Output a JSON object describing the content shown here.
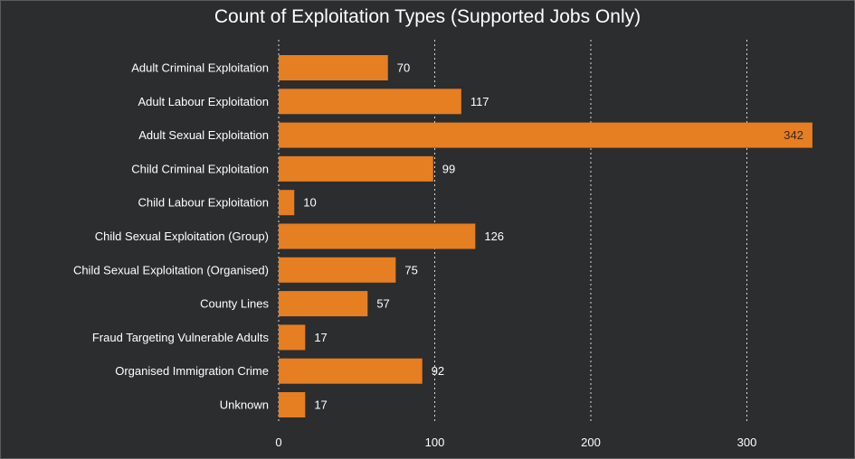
{
  "chart_data": {
    "type": "bar",
    "orientation": "horizontal",
    "title": "Count of Exploitation Types (Supported Jobs Only)",
    "xlabel": "",
    "ylabel": "",
    "categories": [
      "Adult Criminal Exploitation",
      "Adult Labour Exploitation",
      "Adult Sexual Exploitation",
      "Child Criminal Exploitation",
      "Child Labour Exploitation",
      "Child Sexual Exploitation (Group)",
      "Child Sexual Exploitation (Organised)",
      "County Lines",
      "Fraud Targeting Vulnerable Adults",
      "Organised Immigration Crime",
      "Unknown"
    ],
    "values": [
      70,
      117,
      342,
      99,
      10,
      126,
      75,
      57,
      17,
      92,
      17
    ],
    "value_labels": [
      "70",
      "117",
      "342",
      "99",
      "10",
      "126",
      "75",
      "57",
      "17",
      "92",
      "17"
    ],
    "xticks": [
      "0",
      "100",
      "200",
      "300"
    ],
    "xlim": [
      0,
      345
    ],
    "grid": "vertical dotted",
    "bar_color": "#e67e22",
    "background": "#2b2d2f"
  }
}
